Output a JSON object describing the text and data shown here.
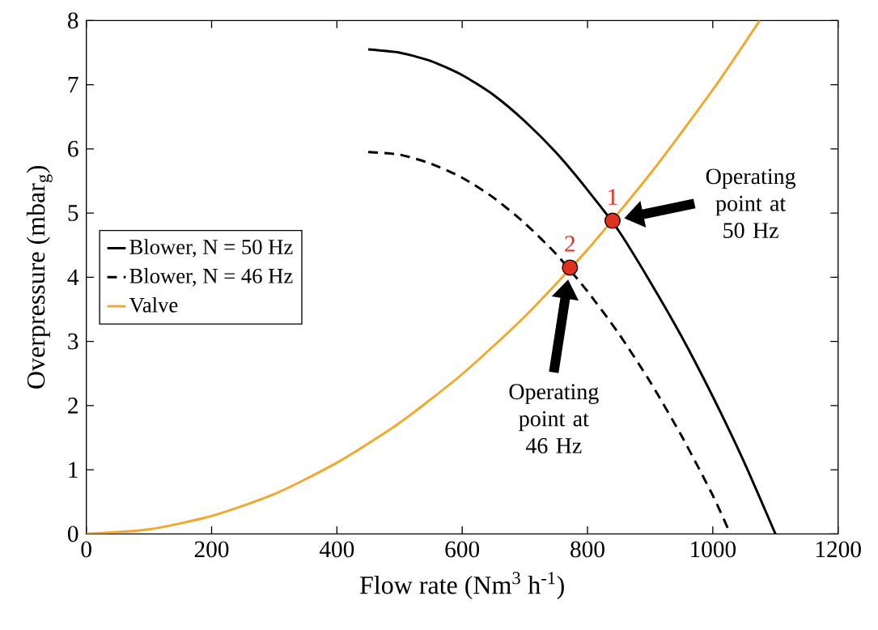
{
  "chart_data": {
    "type": "line",
    "xlabel": "Flow rate (Nm$^{3}$ h$^{-1}$)",
    "ylabel": "Overpressure (mbar$_{g}$)",
    "xlim": [
      0,
      1200
    ],
    "ylim": [
      0,
      8
    ],
    "xticks": [
      0,
      200,
      400,
      600,
      800,
      1000,
      1200
    ],
    "yticks": [
      0,
      1,
      2,
      3,
      4,
      5,
      6,
      7,
      8
    ],
    "grid": false,
    "legend": "left",
    "series": [
      {
        "name": "Blower, N = 50 Hz",
        "color": "#000000",
        "line_style": "solid",
        "marker": "none",
        "x": [
          450,
          500,
          550,
          600,
          650,
          700,
          750,
          800,
          850,
          900,
          950,
          1000,
          1050,
          1100
        ],
        "values": [
          7.55,
          7.5,
          7.37,
          7.15,
          6.84,
          6.43,
          5.94,
          5.36,
          4.72,
          3.93,
          3.08,
          2.14,
          1.12,
          0
        ]
      },
      {
        "name": "Blower, N = 46 Hz",
        "color": "#000000",
        "line_style": "dashed",
        "marker": "none",
        "x": [
          450,
          500,
          550,
          600,
          650,
          700,
          750,
          800,
          850,
          900,
          950,
          1000,
          1028
        ],
        "values": [
          5.95,
          5.91,
          5.77,
          5.55,
          5.24,
          4.84,
          4.36,
          3.78,
          3.12,
          2.37,
          1.53,
          0.6,
          0
        ]
      },
      {
        "name": "Valve",
        "color": "#f0a92c",
        "line_style": "solid",
        "marker": "none",
        "x": [
          0,
          100,
          200,
          300,
          400,
          500,
          600,
          700,
          800,
          900,
          1000,
          1075
        ],
        "values": [
          0,
          0.07,
          0.28,
          0.62,
          1.11,
          1.73,
          2.49,
          3.39,
          4.43,
          5.61,
          6.92,
          8.0
        ]
      },
      {
        "type": "scatter",
        "color": "#e0301e",
        "marker": "circle",
        "x": [
          840,
          772
        ],
        "values": [
          4.88,
          4.15
        ]
      }
    ],
    "annotations": [
      "1",
      "2",
      "Operating point at 50 Hz",
      "Operating point at 46 Hz"
    ]
  }
}
